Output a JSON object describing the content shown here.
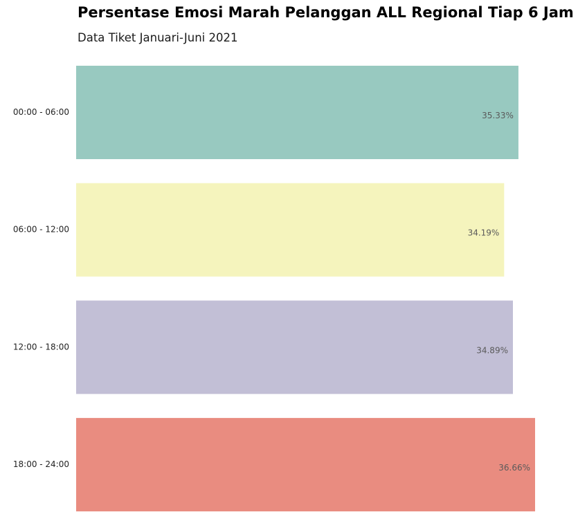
{
  "chart_data": {
    "type": "bar",
    "orientation": "horizontal",
    "title": "Persentase Emosi Marah Pelanggan ALL Regional Tiap 6 Jam",
    "subtitle": "Data Tiket Januari-Juni 2021",
    "categories": [
      "00:00 - 06:00",
      "06:00 - 12:00",
      "12:00 - 18:00",
      "18:00 - 24:00"
    ],
    "values": [
      35.33,
      34.19,
      34.89,
      36.66
    ],
    "value_labels": [
      "35.33%",
      "34.19%",
      "34.89%",
      "36.66%"
    ],
    "colors": [
      "#98c9c0",
      "#f5f4bd",
      "#c2bfd6",
      "#e98c80"
    ],
    "xlim": [
      0,
      36.66
    ],
    "grid": false,
    "axes_visible": false
  }
}
